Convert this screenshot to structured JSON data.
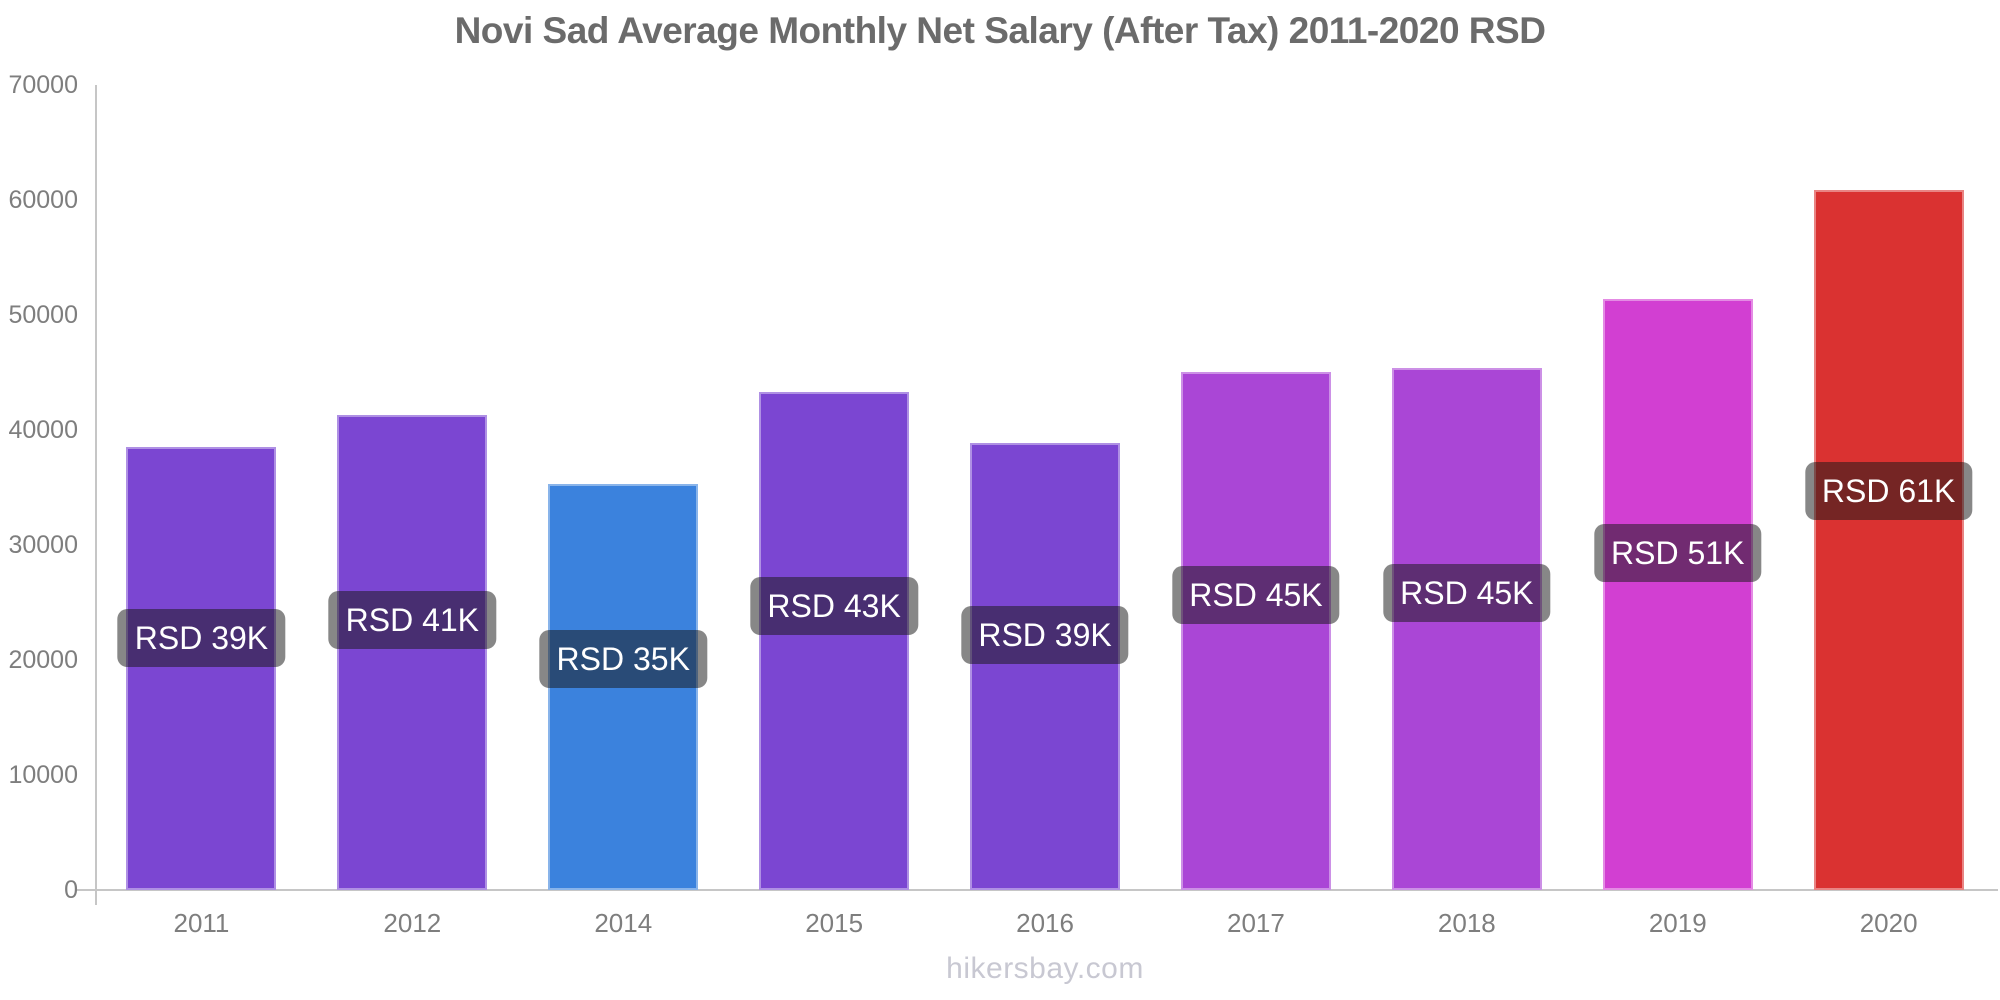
{
  "title": "Novi Sad Average Monthly Net Salary (After Tax) 2011-2020 RSD",
  "footer": "hikersbay.com",
  "colors": {
    "title_text": "#6b6b6b",
    "axis_line": "#c6c6c6",
    "tick_text": "#7e7e7e",
    "label_pill_bg": "rgba(25,25,25,0.52)",
    "label_text": "#ffffff",
    "footer_text": "#c8c8d2",
    "bar_purple": "#7b46d2",
    "bar_blue": "#3b82dd",
    "bar_magenta_purple": "#aa46d6",
    "bar_pink": "#d23fd2",
    "bar_red": "#da3231"
  },
  "chart_data": {
    "type": "bar",
    "title": "Novi Sad Average Monthly Net Salary (After Tax) 2011-2020 RSD",
    "xlabel": "",
    "ylabel": "",
    "categories": [
      "2011",
      "2012",
      "2014",
      "2015",
      "2016",
      "2017",
      "2018",
      "2019",
      "2020"
    ],
    "values": [
      38500,
      41300,
      35300,
      43300,
      38900,
      45000,
      45400,
      51400,
      60900
    ],
    "bar_labels": [
      "RSD 39K",
      "RSD 41K",
      "RSD 35K",
      "RSD 43K",
      "RSD 39K",
      "RSD 45K",
      "RSD 45K",
      "RSD 51K",
      "RSD 61K"
    ],
    "bar_colors": [
      "#7b46d2",
      "#7b46d2",
      "#3b82dd",
      "#7b46d2",
      "#7b46d2",
      "#aa46d6",
      "#aa46d6",
      "#d23fd2",
      "#da3231"
    ],
    "ylim": [
      0,
      70000
    ],
    "yticks": [
      0,
      10000,
      20000,
      30000,
      40000,
      50000,
      60000,
      70000
    ],
    "grid": false,
    "legend": false,
    "note_missing_year": "2013"
  }
}
